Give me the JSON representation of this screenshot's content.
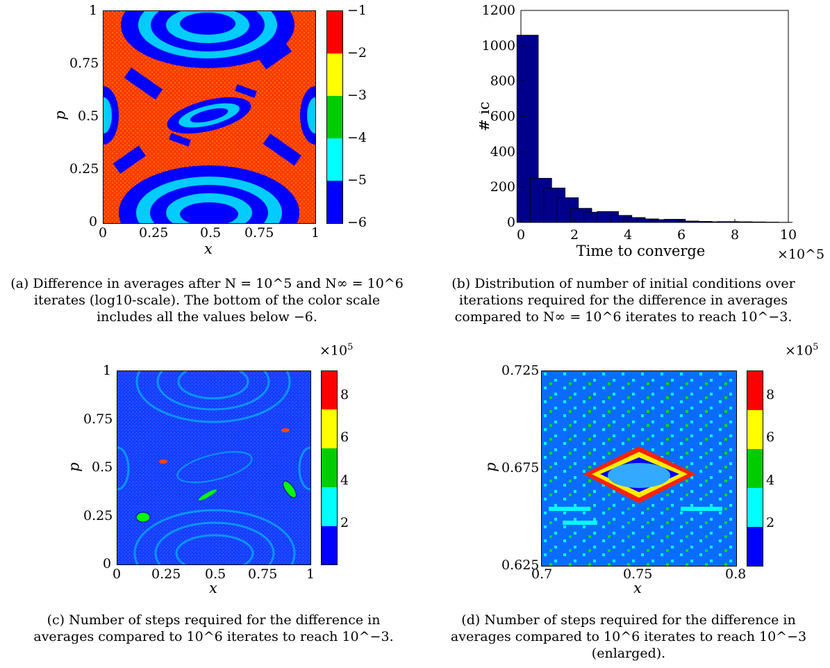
{
  "colors": {
    "red": "#ff0000",
    "yellow": "#ffff00",
    "green": "#00cc00",
    "cyan": "#00ffff",
    "blue": "#0000ff",
    "navy": "#00008b"
  },
  "chart_data": [
    {
      "type": "heatmap",
      "panel": "a",
      "xlabel": "x",
      "ylabel": "p",
      "xticks": [
        "0",
        "0.25",
        "0.5",
        "0.75",
        "1"
      ],
      "yticks": [
        "0",
        "0.25",
        "0.5",
        "0.75",
        "1"
      ],
      "colorbar": {
        "ticks": [
          "−1",
          "−2",
          "−3",
          "−4",
          "−5",
          "−6"
        ],
        "colors": [
          "#ff0000",
          "#ffff00",
          "#00cc00",
          "#00ffff",
          "#0000ff"
        ]
      },
      "caption": [
        "(a) Difference in averages after N = 10^5 and N∞ = 10^6",
        "iterates (log10-scale). The bottom of the color scale",
        "includes all the values below −6."
      ]
    },
    {
      "type": "bar",
      "panel": "b",
      "title": "",
      "xlabel": "Time to converge",
      "ylabel": "# ic",
      "x_scale": "×10^5",
      "xlim": [
        0,
        10
      ],
      "ylim": [
        0,
        1200
      ],
      "xticks": [
        "0",
        "2",
        "4",
        "6",
        "8",
        "10"
      ],
      "yticks": [
        "0",
        "200",
        "400",
        "600",
        "800",
        "1000",
        "1200"
      ],
      "categories": [
        0.25,
        0.75,
        1.25,
        1.75,
        2.25,
        2.75,
        3.25,
        3.75,
        4.25,
        4.75,
        5.25,
        5.75,
        6.25,
        6.75,
        7.25,
        7.75,
        8.25,
        8.75,
        9.25,
        9.75
      ],
      "values": [
        1060,
        250,
        195,
        140,
        80,
        58,
        62,
        40,
        28,
        20,
        16,
        18,
        8,
        6,
        4,
        5,
        4,
        3,
        2,
        1
      ],
      "caption": [
        "(b) Distribution of number of initial conditions over",
        "iterations required for the difference in averages",
        "compared to N∞ = 10^6 iterates to reach 10^−3."
      ]
    },
    {
      "type": "heatmap",
      "panel": "c",
      "xlabel": "x",
      "ylabel": "p",
      "xticks": [
        "0",
        "0.25",
        "0.5",
        "0.75",
        "1"
      ],
      "yticks": [
        "0",
        "0.25",
        "0.5",
        "0.75",
        "1"
      ],
      "colorbar": {
        "scale": "×10^5",
        "ticks": [
          "8",
          "6",
          "4",
          "2"
        ],
        "colors": [
          "#ff0000",
          "#ffff00",
          "#00cc00",
          "#00ffff",
          "#0000ff"
        ]
      },
      "caption": [
        "(c) Number of steps required for the difference in",
        "averages compared to 10^6 iterates to reach 10^−3."
      ]
    },
    {
      "type": "heatmap",
      "panel": "d",
      "xlabel": "x",
      "ylabel": "p",
      "xticks": [
        "0.7",
        "0.75",
        "0.8"
      ],
      "yticks": [
        "0.625",
        "0.675",
        "0.725"
      ],
      "colorbar": {
        "scale": "×10^5",
        "ticks": [
          "8",
          "6",
          "4",
          "2"
        ],
        "colors": [
          "#ff0000",
          "#ffff00",
          "#00cc00",
          "#00ffff",
          "#0000ff"
        ]
      },
      "caption": [
        "(d) Number of steps required for the difference in",
        "averages compared to 10^6 iterates to reach 10^−3",
        "(enlarged)."
      ]
    }
  ]
}
